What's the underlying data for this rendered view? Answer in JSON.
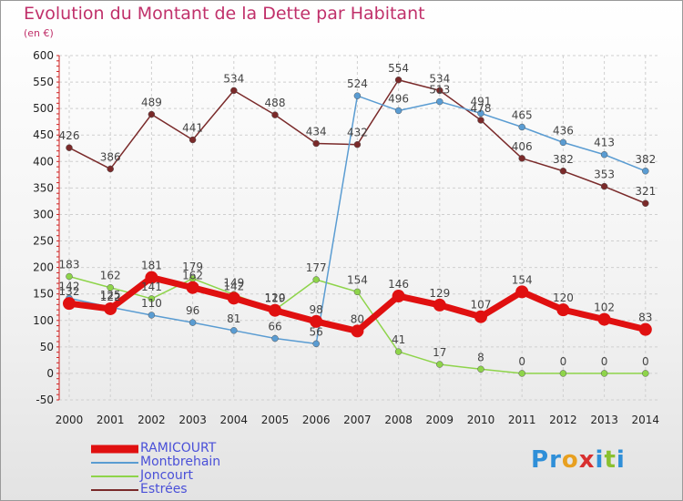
{
  "title": "Evolution du Montant de la Dette par Habitant",
  "subtitle": "(en €)",
  "logo": {
    "text": "Proxiti",
    "letter_colors": [
      "#2f8fd8",
      "#2f8fd8",
      "#e8a020",
      "#d83030",
      "#2f8fd8",
      "#8ac030",
      "#2f8fd8"
    ]
  },
  "chart_data": {
    "type": "line",
    "x": [
      "2000",
      "2001",
      "2002",
      "2003",
      "2004",
      "2005",
      "2006",
      "2007",
      "2008",
      "2009",
      "2010",
      "2011",
      "2012",
      "2013",
      "2014"
    ],
    "ylim": [
      -50,
      600
    ],
    "yticks": [
      -50,
      0,
      50,
      100,
      150,
      200,
      250,
      300,
      350,
      400,
      450,
      500,
      550,
      600
    ],
    "grid": true,
    "legend": "bottom-left",
    "series": [
      {
        "name": "RAMICOURT",
        "color": "#e01010",
        "width": 7,
        "marker": 7,
        "values": [
          132,
          122,
          181,
          162,
          142,
          119,
          98,
          80,
          146,
          129,
          107,
          154,
          120,
          102,
          83
        ],
        "labels": [
          "132",
          "122",
          "181",
          "162",
          "142",
          "119",
          "98",
          "80",
          "146",
          "129",
          "107",
          "154",
          "120",
          "102",
          "83"
        ]
      },
      {
        "name": "Montbrehain",
        "color": "#5a9cd2",
        "width": 1.5,
        "marker": 3.5,
        "values": [
          142,
          125,
          110,
          96,
          81,
          66,
          56,
          524,
          496,
          513,
          491,
          465,
          436,
          413,
          382
        ],
        "labels": [
          "142",
          "125",
          "110",
          "96",
          "81",
          "66",
          "56",
          "524",
          "496",
          "513",
          "491",
          "465",
          "436",
          "413",
          "382"
        ]
      },
      {
        "name": "Joncourt",
        "color": "#8ed44a",
        "width": 1.5,
        "marker": 3.5,
        "values": [
          183,
          162,
          141,
          179,
          149,
          120,
          177,
          154,
          41,
          17,
          8,
          0,
          0,
          0,
          0
        ],
        "labels": [
          "183",
          "162",
          "141",
          "179",
          "149",
          "120",
          "177",
          "154",
          "41",
          "17",
          "8",
          "0",
          "0",
          "0",
          "0"
        ]
      },
      {
        "name": "Estrées",
        "color": "#7a2a2a",
        "width": 1.5,
        "marker": 3.5,
        "values": [
          426,
          386,
          489,
          441,
          534,
          488,
          434,
          432,
          554,
          534,
          478,
          406,
          382,
          353,
          321
        ],
        "labels": [
          "426",
          "386",
          "489",
          "441",
          "534",
          "488",
          "434",
          "432",
          "554",
          "534",
          "478",
          "406",
          "382",
          "353",
          "321"
        ]
      }
    ]
  }
}
